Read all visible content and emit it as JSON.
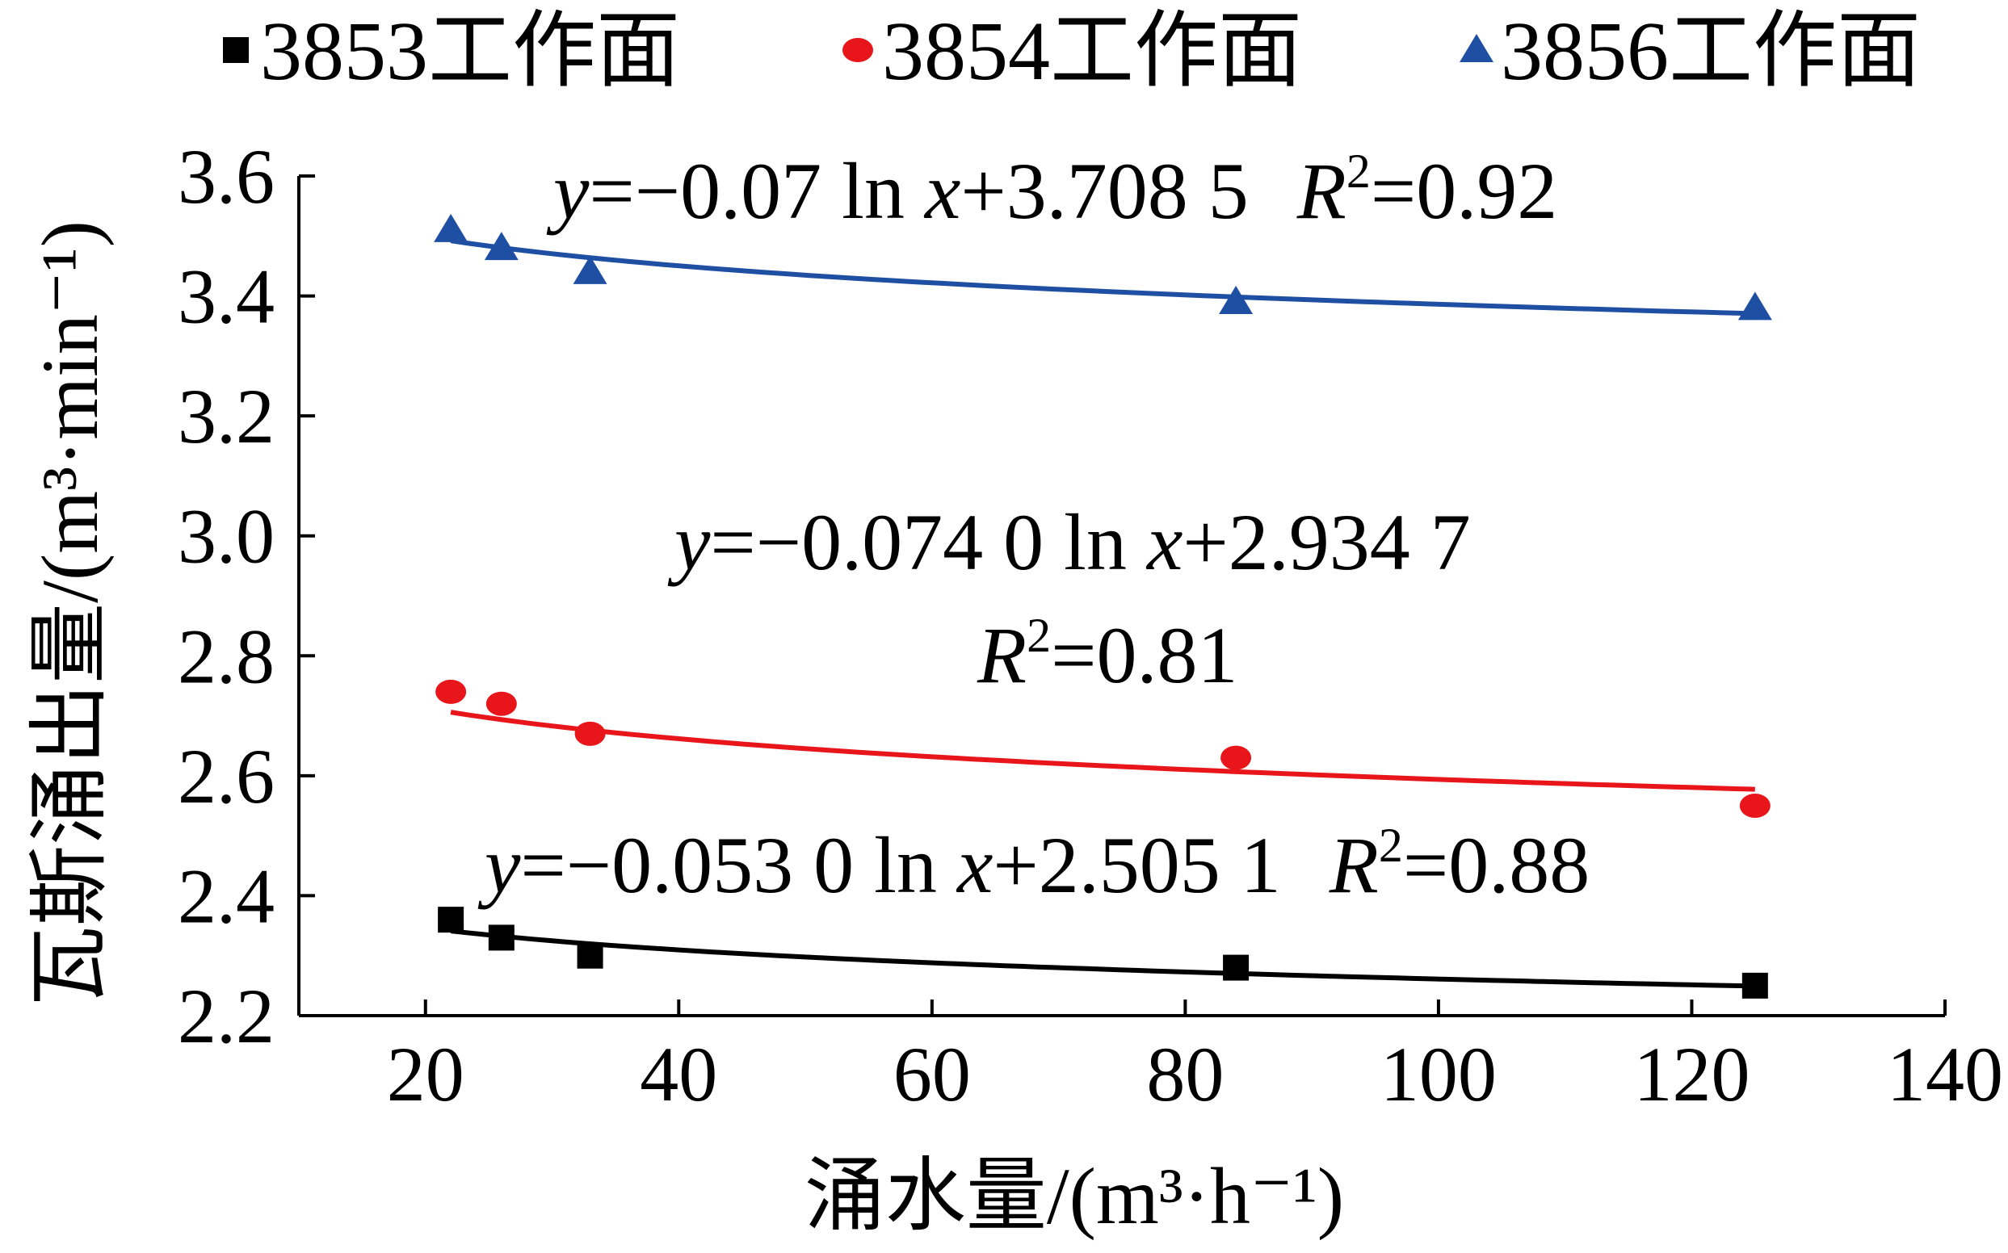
{
  "chart_data": {
    "type": "scatter",
    "xlabel": "涌水量/(m³·h⁻¹)",
    "ylabel": "瓦斯涌出量/(m³·min⁻¹)",
    "xlim": [
      10,
      140
    ],
    "ylim": [
      2.2,
      3.6
    ],
    "xticks": [
      "20",
      "40",
      "60",
      "80",
      "100",
      "120",
      "140"
    ],
    "yticks": [
      "2.2",
      "2.4",
      "2.6",
      "2.8",
      "3.0",
      "3.2",
      "3.4",
      "3.6"
    ],
    "legend_position": "top",
    "grid": false,
    "series": [
      {
        "name": "3853工作面",
        "marker": "square",
        "color": "#000000",
        "x": [
          22,
          26,
          33,
          84,
          125
        ],
        "y": [
          2.36,
          2.33,
          2.3,
          2.28,
          2.25
        ],
        "fit": {
          "a": -0.053,
          "b": 2.5051
        },
        "equation": {
          "lhs": "y",
          "mid": "=−0.053 0 ln ",
          "var": "x",
          "rhs": "+2.505 1",
          "r_label": "R",
          "r_sup": "2",
          "r_val": "=0.88"
        }
      },
      {
        "name": "3854工作面",
        "marker": "circle",
        "color": "#e8161b",
        "x": [
          22,
          26,
          33,
          84,
          125
        ],
        "y": [
          2.74,
          2.72,
          2.67,
          2.63,
          2.55
        ],
        "fit": {
          "a": -0.074,
          "b": 2.9347
        },
        "equation": {
          "lhs": "y",
          "mid": "=−0.074 0 ln ",
          "var": "x",
          "rhs": "+2.934 7",
          "r_label": "R",
          "r_sup": "2",
          "r_val": "=0.81"
        }
      },
      {
        "name": "3856工作面",
        "marker": "triangle",
        "color": "#1f4fa3",
        "x": [
          22,
          26,
          33,
          84,
          125
        ],
        "y": [
          3.51,
          3.48,
          3.44,
          3.39,
          3.38
        ],
        "fit": {
          "a": -0.07,
          "b": 3.7085
        },
        "equation": {
          "lhs": "y",
          "mid": "=−0.07 ln ",
          "var": "x",
          "rhs": "+3.708 5",
          "r_label": "R",
          "r_sup": "2",
          "r_val": "=0.92"
        }
      }
    ]
  }
}
